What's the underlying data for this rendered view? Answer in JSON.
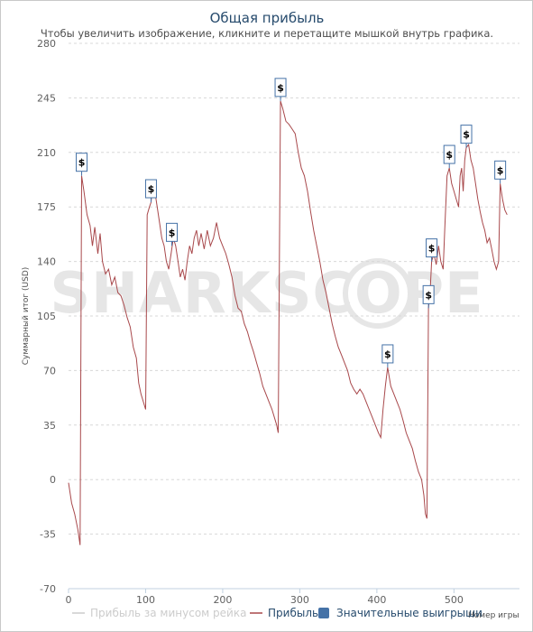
{
  "chart_data": {
    "type": "line",
    "title": "Общая прибыль",
    "subtitle": "Чтобы увеличить изображение, кликните и перетащите мышкой внутрь графика.",
    "xlabel": "Номер игры",
    "ylabel": "Суммарный итог (USD)",
    "xlim": [
      0,
      585
    ],
    "ylim": [
      -70,
      280
    ],
    "x_ticks": [
      0,
      100,
      200,
      300,
      400,
      500
    ],
    "y_ticks": [
      -70,
      -35,
      0,
      35,
      70,
      105,
      140,
      175,
      210,
      245,
      280
    ],
    "grid": "horizontal dashed",
    "watermark": "SHARKSCOPE",
    "legend": {
      "position": "bottom",
      "items": [
        {
          "label": "Прибыль за минусом рейка",
          "color": "#cccccc",
          "symbol": "line",
          "enabled": false
        },
        {
          "label": "Прибыль",
          "color": "#a8484b",
          "symbol": "line",
          "enabled": true
        },
        {
          "label": "Значительные выигрыши",
          "color": "#4572a7",
          "symbol": "square",
          "enabled": true
        }
      ]
    },
    "series": [
      {
        "name": "Прибыль",
        "color": "#a8484b",
        "points": [
          [
            0,
            -2
          ],
          [
            4,
            -15
          ],
          [
            8,
            -22
          ],
          [
            12,
            -32
          ],
          [
            15,
            -42
          ],
          [
            17,
            195
          ],
          [
            20,
            185
          ],
          [
            24,
            170
          ],
          [
            28,
            163
          ],
          [
            31,
            150
          ],
          [
            34,
            162
          ],
          [
            38,
            145
          ],
          [
            41,
            158
          ],
          [
            44,
            140
          ],
          [
            48,
            132
          ],
          [
            52,
            135
          ],
          [
            56,
            125
          ],
          [
            60,
            130
          ],
          [
            64,
            120
          ],
          [
            68,
            118
          ],
          [
            72,
            112
          ],
          [
            76,
            104
          ],
          [
            80,
            98
          ],
          [
            84,
            85
          ],
          [
            88,
            78
          ],
          [
            91,
            62
          ],
          [
            94,
            55
          ],
          [
            97,
            50
          ],
          [
            100,
            45
          ],
          [
            102,
            170
          ],
          [
            105,
            175
          ],
          [
            107,
            178
          ],
          [
            109,
            190
          ],
          [
            112,
            185
          ],
          [
            115,
            175
          ],
          [
            118,
            165
          ],
          [
            121,
            155
          ],
          [
            124,
            150
          ],
          [
            127,
            140
          ],
          [
            130,
            135
          ],
          [
            133,
            145
          ],
          [
            136,
            155
          ],
          [
            139,
            150
          ],
          [
            142,
            140
          ],
          [
            145,
            130
          ],
          [
            148,
            135
          ],
          [
            151,
            128
          ],
          [
            154,
            140
          ],
          [
            157,
            150
          ],
          [
            160,
            145
          ],
          [
            163,
            155
          ],
          [
            166,
            160
          ],
          [
            169,
            150
          ],
          [
            172,
            158
          ],
          [
            176,
            148
          ],
          [
            180,
            160
          ],
          [
            184,
            150
          ],
          [
            188,
            155
          ],
          [
            192,
            165
          ],
          [
            196,
            155
          ],
          [
            200,
            150
          ],
          [
            204,
            145
          ],
          [
            208,
            138
          ],
          [
            212,
            130
          ],
          [
            216,
            118
          ],
          [
            220,
            110
          ],
          [
            224,
            108
          ],
          [
            228,
            100
          ],
          [
            232,
            95
          ],
          [
            236,
            88
          ],
          [
            240,
            82
          ],
          [
            244,
            75
          ],
          [
            248,
            68
          ],
          [
            252,
            60
          ],
          [
            256,
            55
          ],
          [
            260,
            50
          ],
          [
            264,
            45
          ],
          [
            267,
            40
          ],
          [
            270,
            35
          ],
          [
            272,
            30
          ],
          [
            275,
            243
          ],
          [
            278,
            238
          ],
          [
            282,
            230
          ],
          [
            286,
            228
          ],
          [
            290,
            225
          ],
          [
            294,
            222
          ],
          [
            298,
            210
          ],
          [
            302,
            200
          ],
          [
            306,
            195
          ],
          [
            310,
            185
          ],
          [
            314,
            172
          ],
          [
            318,
            160
          ],
          [
            322,
            150
          ],
          [
            326,
            140
          ],
          [
            330,
            128
          ],
          [
            334,
            120
          ],
          [
            338,
            110
          ],
          [
            342,
            100
          ],
          [
            346,
            92
          ],
          [
            350,
            85
          ],
          [
            354,
            80
          ],
          [
            358,
            75
          ],
          [
            362,
            70
          ],
          [
            366,
            62
          ],
          [
            370,
            58
          ],
          [
            374,
            55
          ],
          [
            378,
            58
          ],
          [
            382,
            55
          ],
          [
            386,
            50
          ],
          [
            390,
            45
          ],
          [
            394,
            40
          ],
          [
            398,
            35
          ],
          [
            402,
            30
          ],
          [
            405,
            27
          ],
          [
            408,
            45
          ],
          [
            411,
            60
          ],
          [
            414,
            72
          ],
          [
            418,
            60
          ],
          [
            422,
            55
          ],
          [
            426,
            50
          ],
          [
            430,
            45
          ],
          [
            434,
            38
          ],
          [
            438,
            30
          ],
          [
            442,
            25
          ],
          [
            446,
            20
          ],
          [
            450,
            12
          ],
          [
            454,
            5
          ],
          [
            458,
            0
          ],
          [
            461,
            -10
          ],
          [
            463,
            -22
          ],
          [
            465,
            -25
          ],
          [
            467,
            110
          ],
          [
            469,
            120
          ],
          [
            471,
            140
          ],
          [
            474,
            145
          ],
          [
            477,
            138
          ],
          [
            480,
            150
          ],
          [
            483,
            140
          ],
          [
            486,
            135
          ],
          [
            488,
            160
          ],
          [
            491,
            195
          ],
          [
            494,
            200
          ],
          [
            497,
            190
          ],
          [
            500,
            185
          ],
          [
            503,
            180
          ],
          [
            506,
            175
          ],
          [
            508,
            195
          ],
          [
            510,
            200
          ],
          [
            512,
            185
          ],
          [
            514,
            205
          ],
          [
            516,
            213
          ],
          [
            519,
            215
          ],
          [
            522,
            205
          ],
          [
            525,
            200
          ],
          [
            528,
            190
          ],
          [
            531,
            180
          ],
          [
            534,
            172
          ],
          [
            537,
            165
          ],
          [
            540,
            160
          ],
          [
            543,
            152
          ],
          [
            546,
            155
          ],
          [
            549,
            148
          ],
          [
            552,
            140
          ],
          [
            555,
            135
          ],
          [
            558,
            140
          ],
          [
            560,
            190
          ],
          [
            563,
            180
          ],
          [
            566,
            173
          ],
          [
            569,
            170
          ]
        ]
      }
    ],
    "flags": [
      {
        "x": 17,
        "y": 195,
        "label": "$"
      },
      {
        "x": 107,
        "y": 178,
        "label": "$"
      },
      {
        "x": 134,
        "y": 150,
        "label": "$"
      },
      {
        "x": 275,
        "y": 243,
        "label": "$"
      },
      {
        "x": 414,
        "y": 72,
        "label": "$"
      },
      {
        "x": 467,
        "y": 110,
        "label": "$"
      },
      {
        "x": 471,
        "y": 140,
        "label": "$"
      },
      {
        "x": 494,
        "y": 200,
        "label": "$"
      },
      {
        "x": 516,
        "y": 213,
        "label": "$"
      },
      {
        "x": 560,
        "y": 190,
        "label": "$"
      }
    ]
  }
}
